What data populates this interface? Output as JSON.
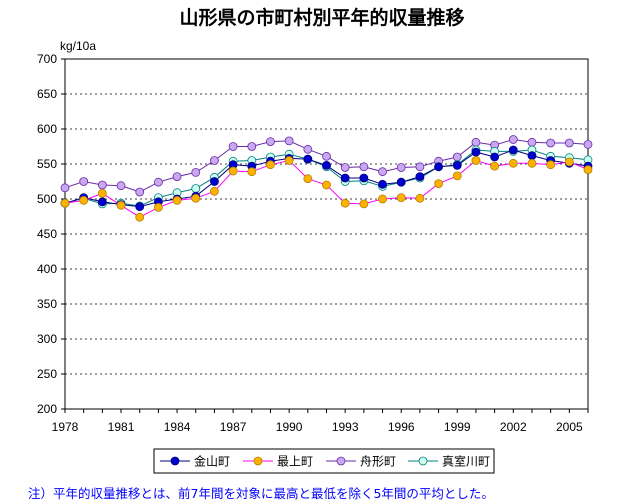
{
  "chart_data": {
    "type": "line",
    "title": "山形県の市町村別平年的収量推移",
    "ylabel": "kg/10a",
    "xlabel": "",
    "ylim": [
      200,
      700
    ],
    "yticks": [
      200,
      250,
      300,
      350,
      400,
      450,
      500,
      550,
      600,
      650,
      700
    ],
    "xlim": [
      1978,
      2006
    ],
    "xticks": [
      1978,
      1981,
      1984,
      1987,
      1990,
      1993,
      1996,
      1999,
      2002,
      2005
    ],
    "grid": true,
    "legend_position": "bottom",
    "x": [
      1978,
      1979,
      1980,
      1981,
      1982,
      1983,
      1984,
      1985,
      1986,
      1987,
      1988,
      1989,
      1990,
      1991,
      1992,
      1993,
      1994,
      1995,
      1996,
      1997,
      1998,
      1999,
      2000,
      2001,
      2002,
      2003,
      2004,
      2005,
      2006
    ],
    "series": [
      {
        "name": "金山町",
        "color": "#000080",
        "marker_fill": "#0000cc",
        "values": [
          494,
          502,
          496,
          492,
          489,
          496,
          500,
          504,
          525,
          549,
          547,
          554,
          558,
          557,
          548,
          530,
          530,
          521,
          524,
          532,
          546,
          548,
          567,
          560,
          570,
          562,
          555,
          551,
          547
        ]
      },
      {
        "name": "最上町",
        "color": "#ff00ff",
        "marker_fill": "#ffb000",
        "values": [
          494,
          498,
          508,
          491,
          474,
          488,
          498,
          501,
          511,
          540,
          539,
          549,
          555,
          529,
          520,
          494,
          493,
          500,
          502,
          501,
          522,
          533,
          555,
          547,
          551,
          551,
          549,
          553,
          542
        ]
      },
      {
        "name": "舟形町",
        "color": "#6a2aa8",
        "marker_fill": "#c8a8ee",
        "values": [
          516,
          525,
          520,
          519,
          510,
          524,
          532,
          538,
          555,
          575,
          575,
          582,
          583,
          571,
          561,
          545,
          546,
          539,
          545,
          546,
          554,
          560,
          581,
          577,
          585,
          581,
          580,
          580,
          578
        ]
      },
      {
        "name": "真室川町",
        "color": "#008080",
        "marker_fill": "#ccffee",
        "values": [
          494,
          501,
          493,
          494,
          490,
          502,
          509,
          515,
          531,
          554,
          555,
          560,
          564,
          557,
          546,
          525,
          526,
          518,
          524,
          530,
          546,
          549,
          570,
          568,
          568,
          570,
          561,
          559,
          556
        ]
      }
    ]
  },
  "note": "注）平年的収量推移とは、前7年間を対象に最高と最低を除く5年間の平均とした。"
}
